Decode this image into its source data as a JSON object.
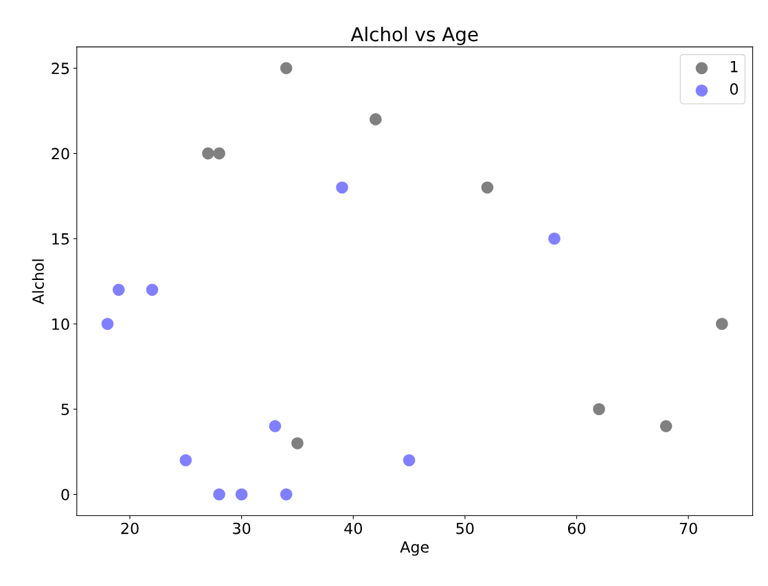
{
  "chart_data": {
    "type": "scatter",
    "title": "Alchol vs Age",
    "xlabel": "Age",
    "ylabel": "Alchol",
    "series": [
      {
        "name": "1",
        "color": "#808080",
        "x": [
          34,
          42,
          27,
          28,
          52,
          73,
          62,
          68,
          35
        ],
        "values": [
          25,
          22,
          20,
          20,
          18,
          10,
          5,
          4,
          3
        ]
      },
      {
        "name": "0",
        "color": "#8080ff",
        "x": [
          39,
          58,
          19,
          22,
          18,
          33,
          25,
          45,
          28,
          30,
          34
        ],
        "values": [
          18,
          15,
          12,
          12,
          10,
          4,
          2,
          2,
          0,
          0,
          0
        ]
      }
    ],
    "xlim": [
      15.25,
      75.75
    ],
    "xticks": [
      20,
      30,
      40,
      50,
      60,
      70
    ],
    "ylim": [
      -1.25,
      26.25
    ],
    "yticks": [
      0,
      5,
      10,
      15,
      20,
      25
    ],
    "legend": "top right",
    "marker": "circle",
    "grid": false
  }
}
